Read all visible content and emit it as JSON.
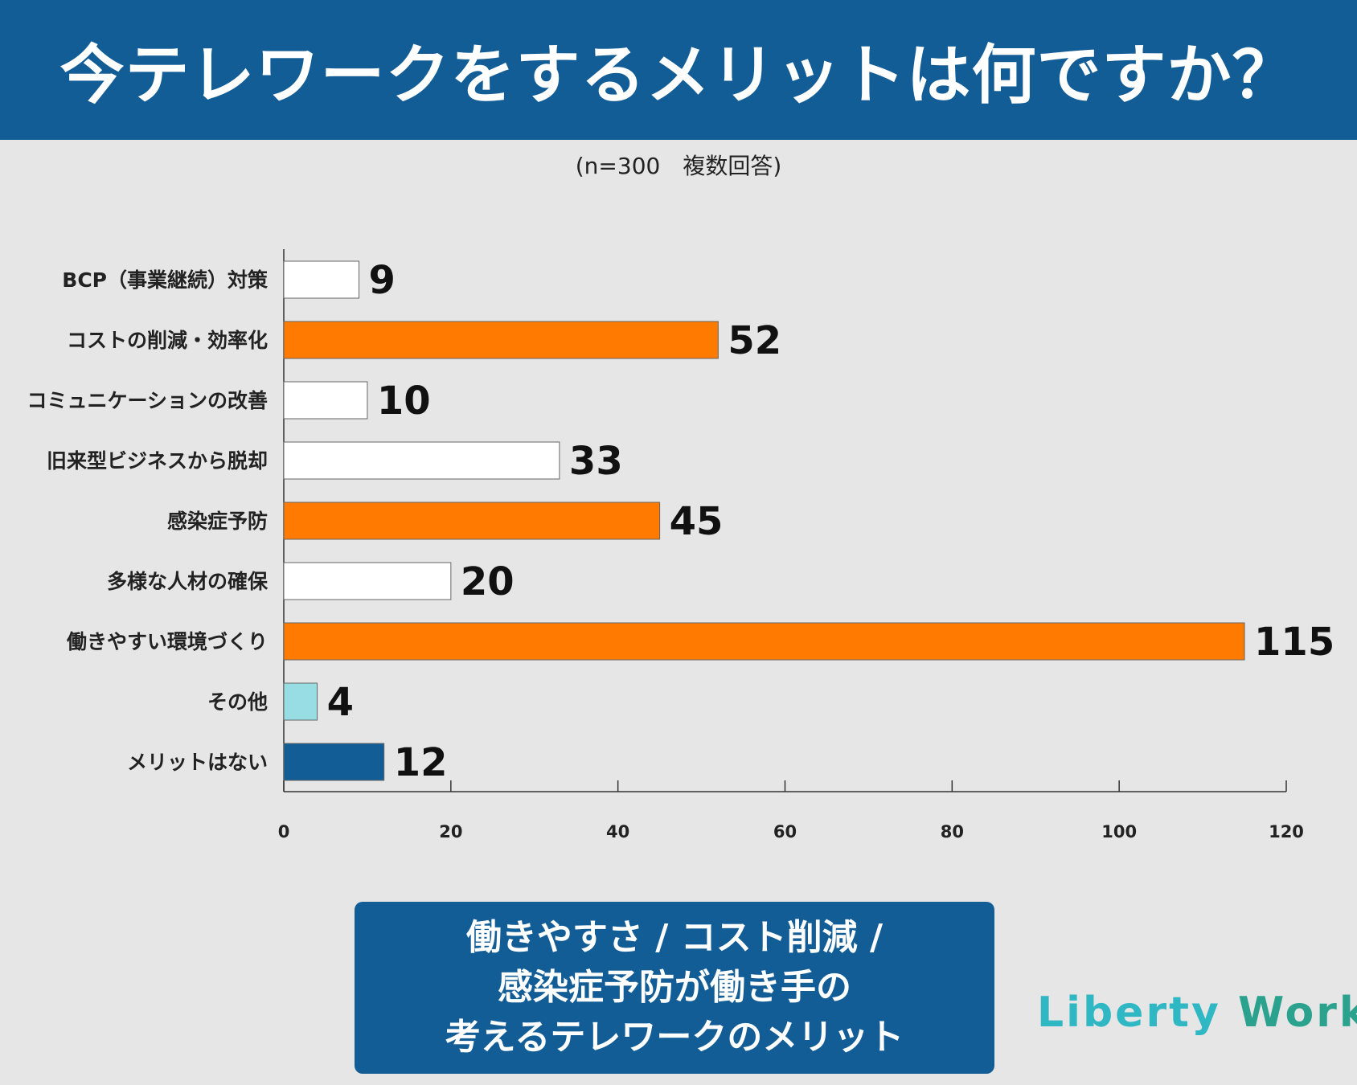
{
  "header": {
    "title": "今テレワークをするメリットは何ですか？"
  },
  "subtitle": "(n=300　複数回答)",
  "chart_data": {
    "type": "bar",
    "orientation": "horizontal",
    "title": "今テレワークをするメリットは何ですか？",
    "categories": [
      "BCP（事業継続）対策",
      "コストの削減・効率化",
      "コミュニケーションの改善",
      "旧来型ビジネスから脱却",
      "感染症予防",
      "多様な人材の確保",
      "働きやすい環境づくり",
      "その他",
      "メリットはない"
    ],
    "values": [
      9,
      52,
      10,
      33,
      45,
      20,
      115,
      4,
      12
    ],
    "bar_colors": [
      "#ffffff",
      "#ff7a00",
      "#ffffff",
      "#ffffff",
      "#ff7a00",
      "#ffffff",
      "#ff7a00",
      "#98dde3",
      "#135d97"
    ],
    "xlim": [
      0,
      120
    ],
    "xticks": [
      "0",
      "20",
      "40",
      "60",
      "80",
      "100",
      "120"
    ],
    "xlabel": "",
    "ylabel": ""
  },
  "summary": {
    "line1": "働きやすさ / コスト削減 /",
    "line2": "感染症予防が働き手の",
    "line3": "考えるテレワークのメリット"
  },
  "logo": {
    "word1": "Liberty",
    "word2": "Works"
  }
}
